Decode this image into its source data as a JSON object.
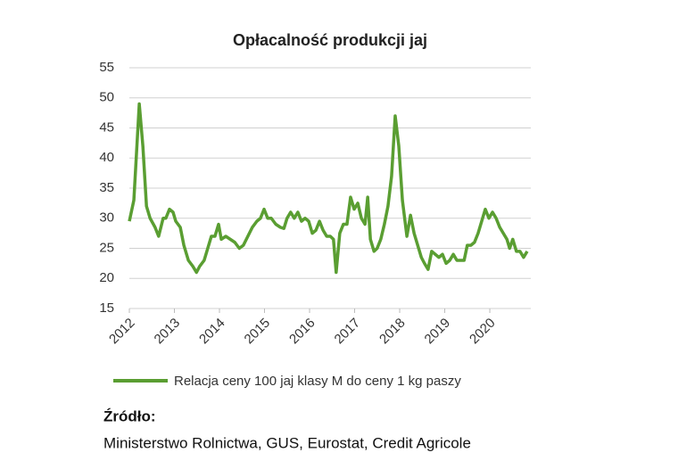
{
  "chart_data": {
    "type": "line",
    "title": "Opłacalność produkcji jaj",
    "xlim": [
      2012,
      2020.91
    ],
    "xticks": [
      2012,
      2013,
      2014,
      2015,
      2016,
      2017,
      2018,
      2019,
      2020
    ],
    "ylim": [
      15,
      55
    ],
    "yticks": [
      15,
      20,
      25,
      30,
      35,
      40,
      45,
      50,
      55
    ],
    "grid": true,
    "series": [
      {
        "name": "Relacja ceny 100 jaj klasy M do ceny 1 kg paszy",
        "color": "#5a9e32",
        "x": [
          2012.0,
          2012.1,
          2012.22,
          2012.3,
          2012.38,
          2012.46,
          2012.57,
          2012.65,
          2012.75,
          2012.81,
          2012.89,
          2012.97,
          2013.03,
          2013.13,
          2013.21,
          2013.31,
          2013.41,
          2013.49,
          2013.56,
          2013.66,
          2013.74,
          2013.82,
          2013.9,
          2013.98,
          2014.04,
          2014.14,
          2014.24,
          2014.34,
          2014.44,
          2014.53,
          2014.63,
          2014.73,
          2014.83,
          2014.91,
          2014.99,
          2015.07,
          2015.15,
          2015.25,
          2015.35,
          2015.43,
          2015.5,
          2015.58,
          2015.66,
          2015.74,
          2015.82,
          2015.9,
          2015.98,
          2016.06,
          2016.14,
          2016.22,
          2016.3,
          2016.38,
          2016.46,
          2016.53,
          2016.59,
          2016.67,
          2016.75,
          2016.83,
          2016.91,
          2016.99,
          2017.07,
          2017.15,
          2017.23,
          2017.29,
          2017.35,
          2017.43,
          2017.5,
          2017.58,
          2017.66,
          2017.74,
          2017.82,
          2017.9,
          2017.98,
          2018.06,
          2018.16,
          2018.24,
          2018.32,
          2018.4,
          2018.48,
          2018.55,
          2018.63,
          2018.71,
          2018.79,
          2018.87,
          2018.95,
          2019.03,
          2019.11,
          2019.19,
          2019.27,
          2019.35,
          2019.43,
          2019.5,
          2019.58,
          2019.66,
          2019.74,
          2019.82,
          2019.9,
          2019.98,
          2020.06,
          2020.14,
          2020.22,
          2020.3,
          2020.38,
          2020.44,
          2020.51,
          2020.59,
          2020.67,
          2020.75,
          2020.83
        ],
        "values": [
          29.5,
          33,
          49,
          42,
          32,
          30,
          28.5,
          27,
          30,
          30,
          31.5,
          31,
          29.5,
          28.5,
          25.5,
          23,
          22,
          21,
          22,
          23,
          25,
          27,
          27,
          29,
          26.5,
          27,
          26.5,
          26,
          25,
          25.5,
          27,
          28.5,
          29.5,
          30,
          31.5,
          30,
          30,
          29,
          28.5,
          28.3,
          30,
          31,
          30,
          31,
          29.5,
          30,
          29.5,
          27.5,
          28,
          29.5,
          28,
          27,
          27,
          26.5,
          21,
          27.5,
          29,
          29,
          33.5,
          31.5,
          32.5,
          30,
          29,
          33.5,
          26.5,
          24.5,
          25,
          26.5,
          29,
          32,
          37,
          47,
          42,
          33,
          27,
          30.5,
          27.5,
          25.5,
          23.5,
          22.5,
          21.5,
          24.5,
          24,
          23.5,
          24,
          22.5,
          23,
          24,
          23,
          23,
          23,
          25.5,
          25.5,
          26,
          27.5,
          29.5,
          31.5,
          30,
          31,
          30,
          28.5,
          27.5,
          26.5,
          25,
          26.5,
          24.5,
          24.5,
          23.5,
          24.5
        ]
      }
    ]
  },
  "source": {
    "label": "Źródło:",
    "text": "Ministerstwo Rolnictwa, GUS, Eurostat, Credit Agricole"
  }
}
